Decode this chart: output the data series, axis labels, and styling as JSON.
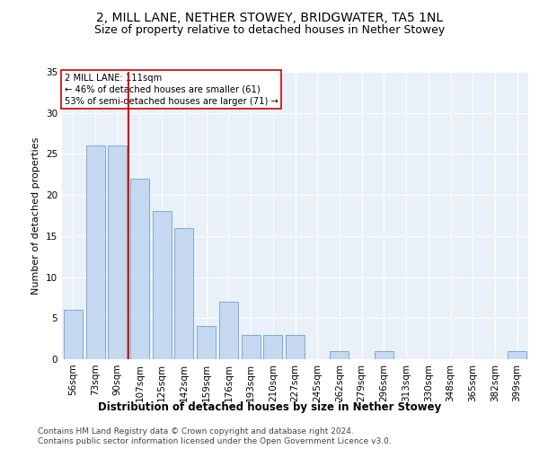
{
  "title1": "2, MILL LANE, NETHER STOWEY, BRIDGWATER, TA5 1NL",
  "title2": "Size of property relative to detached houses in Nether Stowey",
  "xlabel": "Distribution of detached houses by size in Nether Stowey",
  "ylabel": "Number of detached properties",
  "categories": [
    "56sqm",
    "73sqm",
    "90sqm",
    "107sqm",
    "125sqm",
    "142sqm",
    "159sqm",
    "176sqm",
    "193sqm",
    "210sqm",
    "227sqm",
    "245sqm",
    "262sqm",
    "279sqm",
    "296sqm",
    "313sqm",
    "330sqm",
    "348sqm",
    "365sqm",
    "382sqm",
    "399sqm"
  ],
  "values": [
    6,
    26,
    26,
    22,
    18,
    16,
    4,
    7,
    3,
    3,
    3,
    0,
    1,
    0,
    1,
    0,
    0,
    0,
    0,
    0,
    1
  ],
  "bar_color": "#c5d8f0",
  "bar_edge_color": "#7aadd4",
  "annotation_line1": "2 MILL LANE: 111sqm",
  "annotation_line2": "← 46% of detached houses are smaller (61)",
  "annotation_line3": "53% of semi-detached houses are larger (71) →",
  "annotation_box_color": "#ffffff",
  "annotation_box_edge": "#cc0000",
  "vline_color": "#cc0000",
  "vline_pos": 2.5,
  "ylim": [
    0,
    35
  ],
  "yticks": [
    0,
    5,
    10,
    15,
    20,
    25,
    30,
    35
  ],
  "plot_bg": "#eaf0f8",
  "footer1": "Contains HM Land Registry data © Crown copyright and database right 2024.",
  "footer2": "Contains public sector information licensed under the Open Government Licence v3.0.",
  "title1_fontsize": 10,
  "title2_fontsize": 9,
  "xlabel_fontsize": 8.5,
  "ylabel_fontsize": 8,
  "tick_fontsize": 7.5,
  "footer_fontsize": 6.5
}
